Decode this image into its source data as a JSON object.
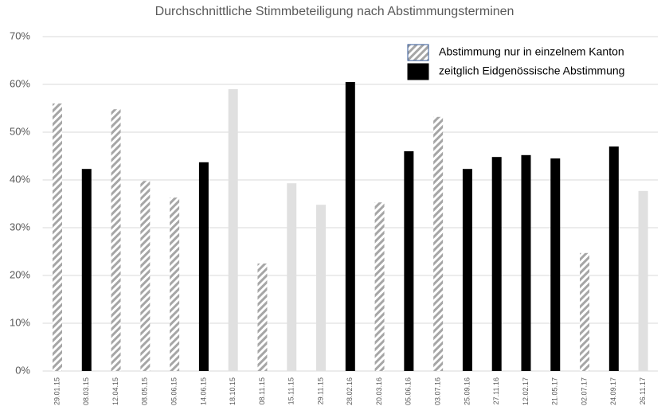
{
  "chart_data": {
    "type": "bar",
    "title": "Durchschnittliche Stimmbeteiligung nach Abstimmungsterminen",
    "categories": [
      "29.01.15",
      "08.03.15",
      "12.04.15",
      "08.05.15",
      "05.06.15",
      "14.06.15",
      "18.10.15",
      "08.11.15",
      "15.11.15",
      "29.11.15",
      "28.02.16",
      "20.03.16",
      "05.06.16",
      "03.07.16",
      "25.09.16",
      "27.11.16",
      "12.02.17",
      "21.05.17",
      "02.07.17",
      "24.09.17",
      "26.11.17"
    ],
    "series": [
      {
        "name": "Abstimmung  nur in einzelnem Kanton",
        "color": "#a6a6a6",
        "hatched": true,
        "values": [
          56,
          null,
          54.8,
          39.8,
          36.3,
          null,
          null,
          22.5,
          null,
          null,
          null,
          35.3,
          null,
          53.2,
          null,
          null,
          null,
          null,
          24.7,
          null,
          null
        ]
      },
      {
        "name": "zeitglich Eidgenössische  Abstimmung",
        "color": "#000000",
        "values": [
          null,
          42.3,
          null,
          null,
          null,
          43.7,
          null,
          null,
          null,
          null,
          60.5,
          null,
          46,
          null,
          42.3,
          44.8,
          45.2,
          44.5,
          null,
          47,
          null
        ]
      },
      {
        "color": "#e0e0e0",
        "values": [
          null,
          null,
          null,
          null,
          null,
          null,
          59,
          null,
          39.3,
          34.8,
          null,
          null,
          null,
          null,
          null,
          null,
          null,
          null,
          null,
          null,
          37.7
        ]
      }
    ],
    "ylim": [
      0,
      70
    ],
    "yticks": [
      {
        "value": 0,
        "label": "0%"
      },
      {
        "value": 10,
        "label": "10%"
      },
      {
        "value": 20,
        "label": "20%"
      },
      {
        "value": 30,
        "label": "30%"
      },
      {
        "value": 40,
        "label": "40%"
      },
      {
        "value": 50,
        "label": "50%"
      },
      {
        "value": 60,
        "label": "60%"
      },
      {
        "value": 70,
        "label": "70%"
      }
    ],
    "grid": true,
    "legend": "top-right"
  }
}
